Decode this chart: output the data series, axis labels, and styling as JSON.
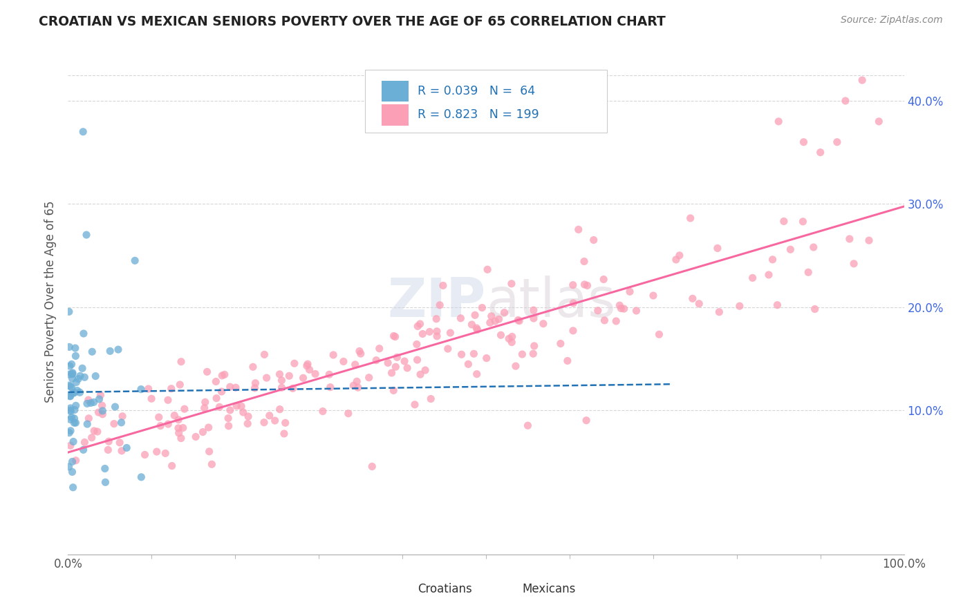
{
  "title": "CROATIAN VS MEXICAN SENIORS POVERTY OVER THE AGE OF 65 CORRELATION CHART",
  "source": "Source: ZipAtlas.com",
  "ylabel": "Seniors Poverty Over the Age of 65",
  "background_color": "#ffffff",
  "grid_color": "#cccccc",
  "watermark_text": "ZIPatlas",
  "croatian_color": "#6baed6",
  "mexican_color": "#fa9fb5",
  "croatian_line_color": "#2171b5",
  "mexican_line_color": "#f768a1",
  "croatian_R": 0.039,
  "croatian_N": 64,
  "mexican_R": 0.823,
  "mexican_N": 199,
  "xlim": [
    0.0,
    1.0
  ],
  "ylim": [
    -0.04,
    0.45
  ],
  "legend_text_color": "#2171b5",
  "title_color": "#222222",
  "source_color": "#888888",
  "axis_label_color": "#555555",
  "tick_color": "#4169E1"
}
